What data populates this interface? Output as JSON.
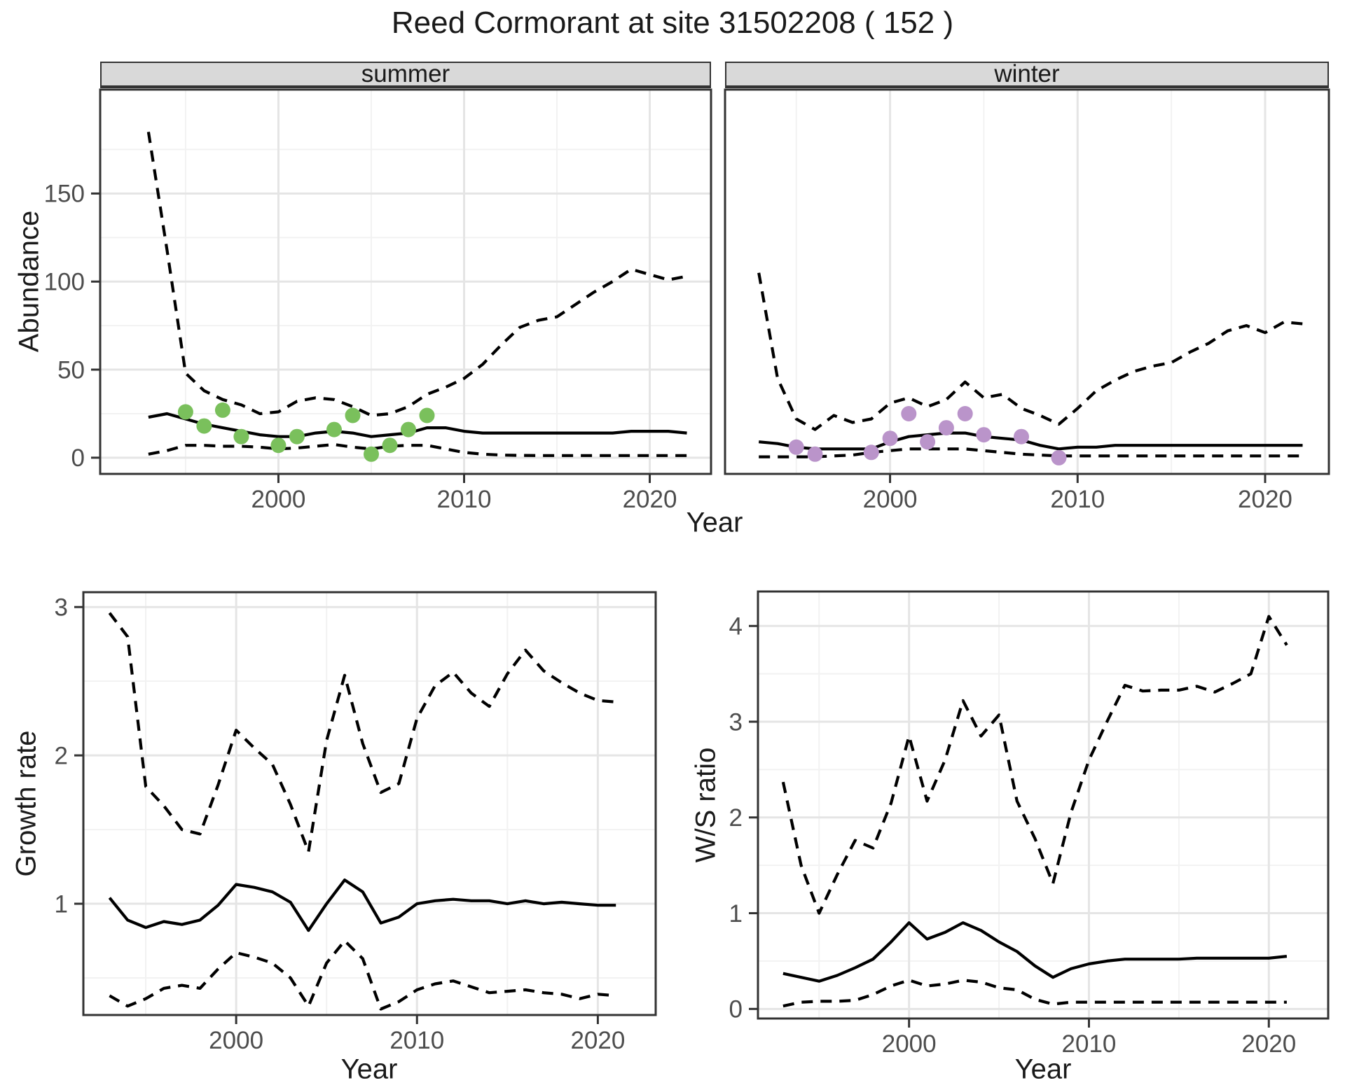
{
  "figure": {
    "title": "Reed Cormorant at site 31502208 ( 152 )",
    "facets": {
      "summer": "summer",
      "winter": "winter"
    },
    "axes": {
      "abundance": "Abundance",
      "top_year": "Year",
      "growth_rate": "Growth rate",
      "growth_year": "Year",
      "ws_ratio": "W/S ratio",
      "ws_year": "Year"
    }
  },
  "colors": {
    "summer_points": "#7ac05c",
    "winter_points": "#ba94ca",
    "line": "#000000",
    "strip_bg": "#d9d9d9",
    "panel_border": "#333333",
    "grid_major": "#e5e5e5",
    "grid_minor": "#f2f2f2",
    "tick_label": "#4d4d4d",
    "text": "#1a1a1a"
  },
  "chart_data": [
    {
      "id": "abundance-summer",
      "type": "line",
      "facet_label": "summer",
      "xlabel": "Year",
      "ylabel": "Abundance",
      "x": [
        1993,
        1994,
        1995,
        1996,
        1997,
        1998,
        1999,
        2000,
        2001,
        2002,
        2003,
        2004,
        2005,
        2006,
        2007,
        2008,
        2009,
        2010,
        2011,
        2012,
        2013,
        2014,
        2015,
        2016,
        2017,
        2018,
        2019,
        2020,
        2021,
        2022
      ],
      "series": [
        {
          "name": "upper_95ci",
          "style": "dashed",
          "values": [
            185,
            118,
            48,
            38,
            33,
            30,
            25,
            26,
            32,
            34,
            33,
            29,
            24,
            25,
            29,
            36,
            40,
            45,
            53,
            64,
            74,
            78,
            80,
            87,
            94,
            100,
            107,
            104,
            101,
            103
          ]
        },
        {
          "name": "mean",
          "style": "solid",
          "values": [
            23,
            25,
            22,
            19,
            17,
            15,
            13,
            12,
            12,
            14,
            15,
            14,
            12,
            13,
            14,
            17,
            17,
            15,
            14,
            14,
            14,
            14,
            14,
            14,
            14,
            14,
            15,
            15,
            15,
            14
          ]
        },
        {
          "name": "lower_95ci",
          "style": "dashed",
          "values": [
            2,
            4,
            7,
            7,
            6.5,
            6.5,
            6,
            5,
            5.5,
            6.5,
            7.5,
            6,
            5,
            6.5,
            7,
            7,
            5,
            3,
            2,
            1.5,
            1.3,
            1.2,
            1.2,
            1.2,
            1.2,
            1.2,
            1.2,
            1.2,
            1.2,
            1.2
          ]
        }
      ],
      "points": {
        "name": "observed-counts",
        "color": "#7ac05c",
        "x": [
          1995,
          1996,
          1997,
          1998,
          2000,
          2001,
          2003,
          2004,
          2005,
          2006,
          2007,
          2008
        ],
        "y": [
          26,
          18,
          27,
          12,
          7,
          12,
          16,
          24,
          2,
          7,
          16,
          24
        ]
      },
      "xlim": [
        1990.4,
        2023.3
      ],
      "ylim": [
        -9.2,
        209
      ],
      "x_ticks": [
        2000,
        2010,
        2020
      ],
      "x_minor": [
        1995,
        2005,
        2015
      ],
      "y_ticks": [
        0,
        50,
        100,
        150
      ],
      "y_minor": [
        25,
        75,
        125,
        175
      ],
      "grid": true,
      "legend": "none"
    },
    {
      "id": "abundance-winter",
      "type": "line",
      "facet_label": "winter",
      "xlabel": "Year",
      "ylabel": "Abundance",
      "x": [
        1993,
        1994,
        1995,
        1996,
        1997,
        1998,
        1999,
        2000,
        2001,
        2002,
        2003,
        2004,
        2005,
        2006,
        2007,
        2008,
        2009,
        2010,
        2011,
        2012,
        2013,
        2014,
        2015,
        2016,
        2017,
        2018,
        2019,
        2020,
        2021,
        2022
      ],
      "series": [
        {
          "name": "upper_95ci",
          "style": "dashed",
          "values": [
            105,
            45,
            22,
            16,
            24,
            20,
            22,
            31,
            34,
            29,
            33,
            43,
            34,
            36,
            28,
            24,
            19,
            28,
            38,
            44,
            49,
            52,
            54,
            60,
            65,
            72,
            75,
            71,
            77,
            76
          ]
        },
        {
          "name": "mean",
          "style": "solid",
          "values": [
            9,
            8,
            6,
            5,
            5,
            5,
            5,
            9,
            12,
            13,
            14,
            14,
            12,
            11,
            10,
            7,
            5,
            6,
            6,
            7,
            7,
            7,
            7,
            7,
            7,
            7,
            7,
            7,
            7,
            7
          ]
        },
        {
          "name": "lower_95ci",
          "style": "dashed",
          "values": [
            0.5,
            0.5,
            0.5,
            0.5,
            1,
            1.5,
            3,
            4,
            5,
            5,
            5,
            5,
            4,
            3,
            2,
            1.5,
            1,
            1,
            1,
            1,
            1,
            1,
            1,
            1,
            1,
            1,
            1,
            1,
            1,
            1
          ]
        }
      ],
      "points": {
        "name": "observed-counts",
        "color": "#ba94ca",
        "x": [
          1995,
          1996,
          1999,
          2000,
          2001,
          2002,
          2003,
          2004,
          2005,
          2007,
          2009
        ],
        "y": [
          6,
          2,
          3,
          11,
          25,
          9,
          17,
          25,
          13,
          12,
          0
        ]
      },
      "xlim": [
        1991.2,
        2023.4
      ],
      "ylim": [
        -9.2,
        209
      ],
      "x_ticks": [
        2000,
        2010,
        2020
      ],
      "x_minor": [
        1995,
        2005,
        2015
      ],
      "y_ticks": [],
      "y_minor": [],
      "grid": true,
      "legend": "none"
    },
    {
      "id": "growth-rate",
      "type": "line",
      "xlabel": "Year",
      "ylabel": "Growth rate",
      "x": [
        1993,
        1994,
        1995,
        1996,
        1997,
        1998,
        1999,
        2000,
        2001,
        2002,
        2003,
        2004,
        2005,
        2006,
        2007,
        2008,
        2009,
        2010,
        2011,
        2012,
        2013,
        2014,
        2015,
        2016,
        2017,
        2018,
        2019,
        2020,
        2021
      ],
      "series": [
        {
          "name": "upper_95ci",
          "style": "dashed",
          "values": [
            2.96,
            2.8,
            1.79,
            1.66,
            1.5,
            1.47,
            1.8,
            2.17,
            2.05,
            1.94,
            1.67,
            1.35,
            2.1,
            2.54,
            2.08,
            1.75,
            1.81,
            2.25,
            2.47,
            2.56,
            2.42,
            2.33,
            2.55,
            2.71,
            2.57,
            2.49,
            2.42,
            2.37,
            2.36
          ]
        },
        {
          "name": "mean",
          "style": "solid",
          "values": [
            1.04,
            0.89,
            0.84,
            0.88,
            0.86,
            0.89,
            0.99,
            1.13,
            1.11,
            1.08,
            1.01,
            0.82,
            1.0,
            1.16,
            1.08,
            0.87,
            0.91,
            1.0,
            1.02,
            1.03,
            1.02,
            1.02,
            1.0,
            1.02,
            1.0,
            1.01,
            1.0,
            0.99,
            0.99
          ]
        },
        {
          "name": "lower_95ci",
          "style": "dashed",
          "values": [
            0.38,
            0.31,
            0.36,
            0.43,
            0.45,
            0.43,
            0.56,
            0.67,
            0.64,
            0.6,
            0.5,
            0.31,
            0.6,
            0.75,
            0.63,
            0.29,
            0.34,
            0.42,
            0.46,
            0.48,
            0.44,
            0.4,
            0.41,
            0.42,
            0.4,
            0.39,
            0.36,
            0.39,
            0.38
          ]
        }
      ],
      "xlim": [
        1991.55,
        2023.2
      ],
      "ylim": [
        0.25,
        3.1
      ],
      "x_ticks": [
        2000,
        2010,
        2020
      ],
      "x_minor": [
        1995,
        2005,
        2015
      ],
      "y_ticks": [
        1,
        2,
        3
      ],
      "y_minor": [
        0.5,
        1.5,
        2.5
      ],
      "grid": true,
      "legend": "none"
    },
    {
      "id": "ws-ratio",
      "type": "line",
      "xlabel": "Year",
      "ylabel": "W/S ratio",
      "x": [
        1993,
        1994,
        1995,
        1996,
        1997,
        1998,
        1999,
        2000,
        2001,
        2002,
        2003,
        2004,
        2005,
        2006,
        2007,
        2008,
        2009,
        2010,
        2011,
        2012,
        2013,
        2014,
        2015,
        2016,
        2017,
        2018,
        2019,
        2020,
        2021
      ],
      "series": [
        {
          "name": "upper_95ci",
          "style": "dashed",
          "values": [
            2.37,
            1.5,
            1.0,
            1.4,
            1.76,
            1.68,
            2.15,
            2.85,
            2.17,
            2.6,
            3.22,
            2.85,
            3.07,
            2.17,
            1.78,
            1.31,
            2.05,
            2.6,
            3.0,
            3.38,
            3.32,
            3.33,
            3.33,
            3.37,
            3.31,
            3.4,
            3.5,
            4.1,
            3.8
          ]
        },
        {
          "name": "mean",
          "style": "solid",
          "values": [
            0.37,
            0.33,
            0.29,
            0.35,
            0.43,
            0.52,
            0.7,
            0.9,
            0.73,
            0.8,
            0.9,
            0.82,
            0.7,
            0.6,
            0.45,
            0.33,
            0.42,
            0.47,
            0.5,
            0.52,
            0.52,
            0.52,
            0.52,
            0.53,
            0.53,
            0.53,
            0.53,
            0.53,
            0.55
          ]
        },
        {
          "name": "lower_95ci",
          "style": "dashed",
          "values": [
            0.03,
            0.07,
            0.08,
            0.08,
            0.09,
            0.15,
            0.24,
            0.3,
            0.24,
            0.26,
            0.3,
            0.28,
            0.22,
            0.2,
            0.1,
            0.05,
            0.07,
            0.07,
            0.07,
            0.07,
            0.07,
            0.07,
            0.07,
            0.07,
            0.07,
            0.07,
            0.07,
            0.07,
            0.07
          ]
        }
      ],
      "xlim": [
        1991.6,
        2023.3
      ],
      "ylim": [
        -0.1,
        4.36
      ],
      "x_ticks": [
        2000,
        2010,
        2020
      ],
      "x_minor": [
        1995,
        2005,
        2015
      ],
      "y_ticks": [
        0,
        1,
        2,
        3,
        4
      ],
      "y_minor": [
        0.5,
        1.5,
        2.5,
        3.5
      ],
      "grid": true,
      "legend": "none"
    }
  ]
}
